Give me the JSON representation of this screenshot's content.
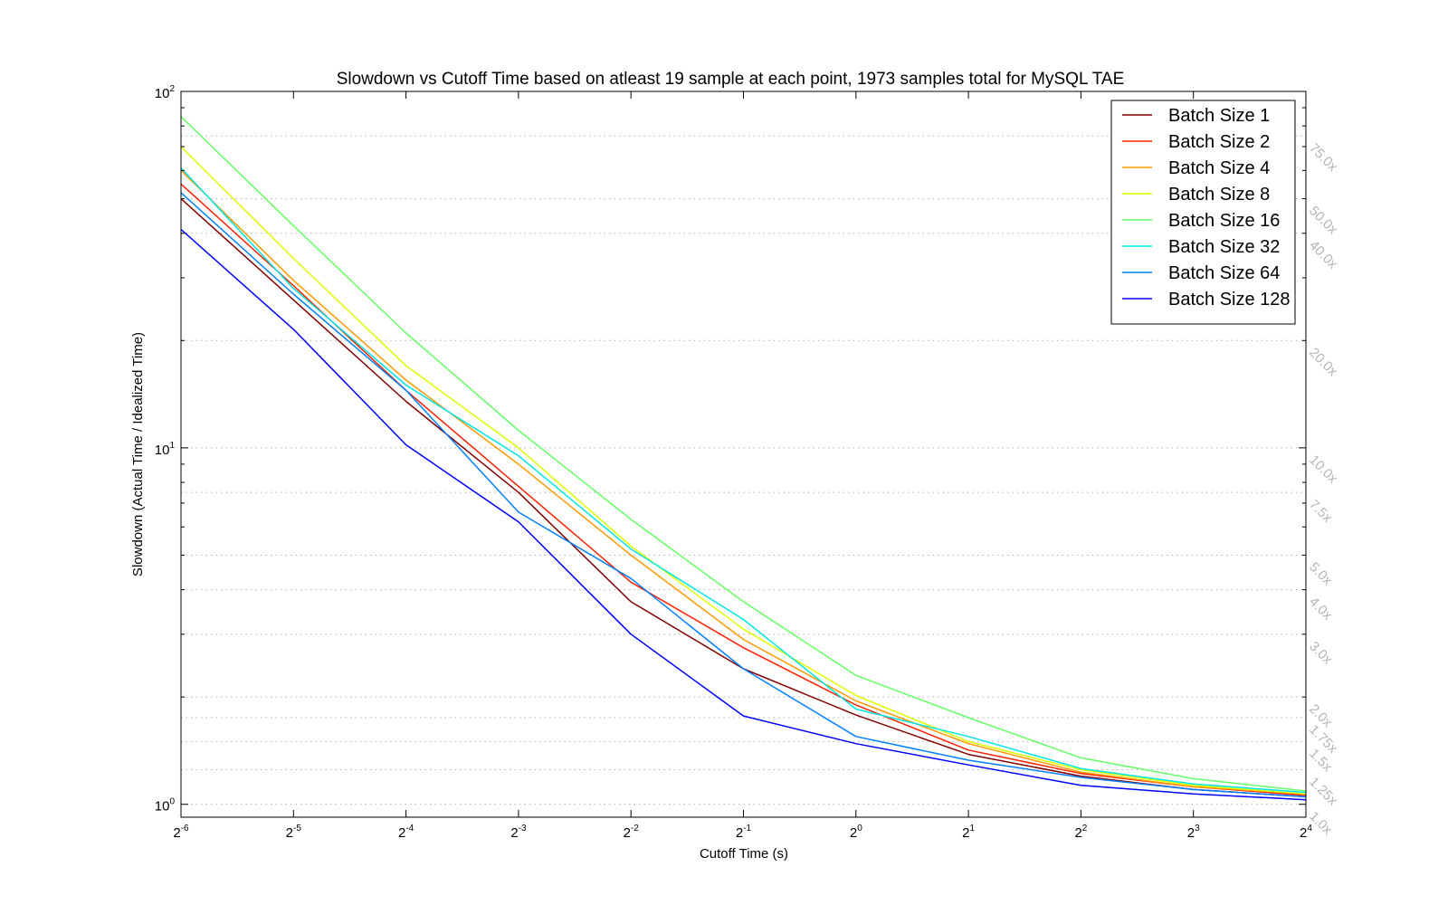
{
  "chart_data": {
    "type": "line",
    "title": "Slowdown vs Cutoff Time based on atleast 19 sample at each point, 1973 samples total for MySQL TAE",
    "xlabel": "Cutoff Time (s)",
    "ylabel": "Slowdown (Actual Time / Idealized Time)",
    "x_scale": "log2",
    "y_scale": "log10",
    "x_exponents": [
      -6,
      -5,
      -4,
      -3,
      -2,
      -1,
      0,
      1,
      2,
      3,
      4
    ],
    "x": [
      0.015625,
      0.03125,
      0.0625,
      0.125,
      0.25,
      0.5,
      1,
      2,
      4,
      8,
      16
    ],
    "xlim": [
      0.015625,
      16
    ],
    "ylim": [
      0.92,
      100
    ],
    "x_tick_labels": [
      {
        "base": "2",
        "exp": "-6"
      },
      {
        "base": "2",
        "exp": "-5"
      },
      {
        "base": "2",
        "exp": "-4"
      },
      {
        "base": "2",
        "exp": "-3"
      },
      {
        "base": "2",
        "exp": "-2"
      },
      {
        "base": "2",
        "exp": "-1"
      },
      {
        "base": "2",
        "exp": "0"
      },
      {
        "base": "2",
        "exp": "1"
      },
      {
        "base": "2",
        "exp": "2"
      },
      {
        "base": "2",
        "exp": "3"
      },
      {
        "base": "2",
        "exp": "4"
      }
    ],
    "y_tick_labels": [
      {
        "value": 1,
        "base": "10",
        "exp": "0"
      },
      {
        "value": 10,
        "base": "10",
        "exp": "1"
      },
      {
        "value": 100,
        "base": "10",
        "exp": "2"
      }
    ],
    "reference_lines": [
      {
        "value": 75,
        "label": "75.0x"
      },
      {
        "value": 50,
        "label": "50.0x"
      },
      {
        "value": 40,
        "label": "40.0x"
      },
      {
        "value": 20,
        "label": "20.0x"
      },
      {
        "value": 10,
        "label": "10.0x"
      },
      {
        "value": 7.5,
        "label": "7.5x"
      },
      {
        "value": 5,
        "label": "5.0x"
      },
      {
        "value": 4,
        "label": "4.0x"
      },
      {
        "value": 3,
        "label": "3.0x"
      },
      {
        "value": 2,
        "label": "2.0x"
      },
      {
        "value": 1.75,
        "label": "1.75x"
      },
      {
        "value": 1.5,
        "label": "1.5x"
      },
      {
        "value": 1.25,
        "label": "1.25x"
      },
      {
        "value": 1.0,
        "label": "1.0x"
      }
    ],
    "legend_position": "top-right",
    "grid": true,
    "series": [
      {
        "name": "Batch Size 1",
        "color": "#800000",
        "values": [
          50,
          26,
          13.5,
          7.5,
          3.7,
          2.4,
          1.78,
          1.38,
          1.2,
          1.1,
          1.05
        ]
      },
      {
        "name": "Batch Size 2",
        "color": "#ff2000",
        "values": [
          55,
          28.5,
          14.5,
          7.8,
          4.2,
          2.75,
          1.9,
          1.42,
          1.22,
          1.12,
          1.06
        ]
      },
      {
        "name": "Batch Size 4",
        "color": "#ff9900",
        "values": [
          60,
          29.5,
          15.5,
          9,
          5,
          2.9,
          1.95,
          1.48,
          1.23,
          1.12,
          1.07
        ]
      },
      {
        "name": "Batch Size 8",
        "color": "#dfff00",
        "values": [
          70,
          34,
          17,
          10,
          5.3,
          3.1,
          2.02,
          1.5,
          1.25,
          1.13,
          1.07
        ]
      },
      {
        "name": "Batch Size 16",
        "color": "#66ff66",
        "values": [
          85,
          42,
          21,
          11.2,
          6.3,
          3.7,
          2.3,
          1.75,
          1.35,
          1.18,
          1.09
        ]
      },
      {
        "name": "Batch Size 32",
        "color": "#00e5e5",
        "values": [
          61,
          28,
          15,
          9.5,
          5.2,
          3.3,
          1.85,
          1.55,
          1.26,
          1.14,
          1.08
        ]
      },
      {
        "name": "Batch Size 64",
        "color": "#0080ff",
        "values": [
          52,
          27,
          14.5,
          6.6,
          4.3,
          2.4,
          1.55,
          1.33,
          1.19,
          1.1,
          1.05
        ]
      },
      {
        "name": "Batch Size 128",
        "color": "#0000ff",
        "values": [
          41,
          21.5,
          10.2,
          6.2,
          3.0,
          1.77,
          1.48,
          1.29,
          1.13,
          1.07,
          1.03
        ]
      }
    ]
  }
}
